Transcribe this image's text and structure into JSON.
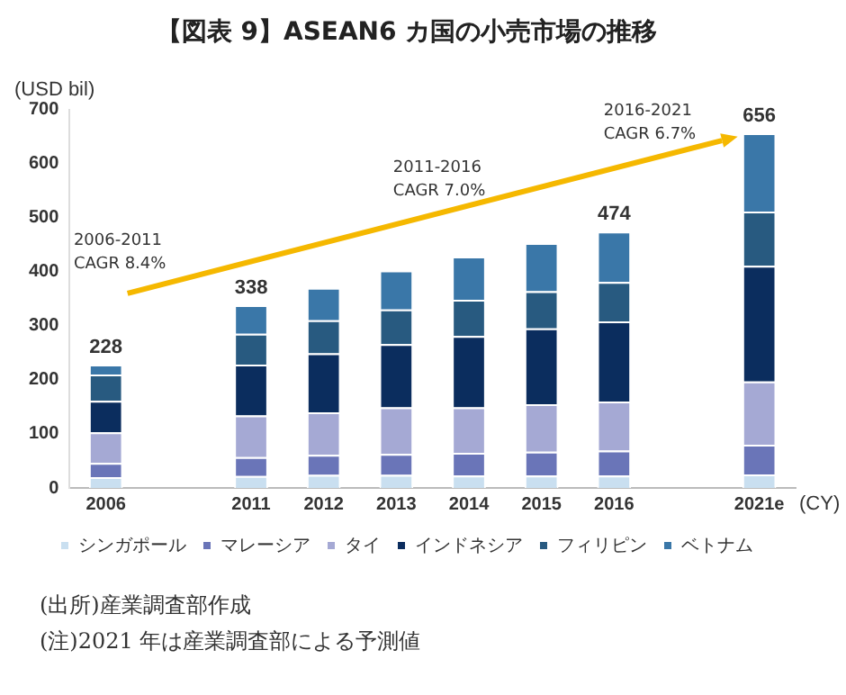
{
  "chart_data": {
    "type": "bar",
    "stacked": true,
    "title": "【図表 9】ASEAN6 カ国の小売市場の推移",
    "ylabel": "(USD bil)",
    "xlabel": "(CY)",
    "categories": [
      "2006",
      null,
      "2011",
      "2012",
      "2013",
      "2014",
      "2015",
      "2016",
      null,
      "2021e"
    ],
    "series": [
      {
        "name": "シンガポール",
        "color": "#c9dff0",
        "values": [
          20,
          null,
          22,
          24,
          24,
          23,
          23,
          23,
          null,
          25
        ]
      },
      {
        "name": "マレーシア",
        "color": "#6a75b8",
        "values": [
          26,
          null,
          35,
          37,
          39,
          42,
          44,
          46,
          null,
          55
        ]
      },
      {
        "name": "タイ",
        "color": "#a5a9d4",
        "values": [
          57,
          null,
          77,
          79,
          86,
          84,
          88,
          91,
          null,
          117
        ]
      },
      {
        "name": "インドネシア",
        "color": "#0b2d5e",
        "values": [
          58,
          null,
          94,
          109,
          117,
          132,
          140,
          148,
          null,
          214
        ]
      },
      {
        "name": "フィリピン",
        "color": "#285a80",
        "values": [
          49,
          null,
          57,
          61,
          64,
          67,
          69,
          73,
          null,
          100
        ]
      },
      {
        "name": "ベトナム",
        "color": "#3a77a8",
        "values": [
          18,
          null,
          53,
          60,
          72,
          80,
          89,
          93,
          null,
          145
        ]
      }
    ],
    "totals": [
      "228",
      null,
      "338",
      null,
      null,
      null,
      null,
      "474",
      null,
      "656"
    ],
    "ylim": [
      0,
      700
    ],
    "yticks": [
      0,
      100,
      200,
      300,
      400,
      500,
      600,
      700
    ],
    "grid": false,
    "legend": "bottom",
    "annotations": [
      "2006-2011\nCAGR 8.4%",
      "2011-2016\nCAGR 7.0%",
      "2016-2021\nCAGR 6.7%",
      "(出所)産業調査部作成",
      "(注)2021 年は産業調査部による予測値"
    ]
  }
}
